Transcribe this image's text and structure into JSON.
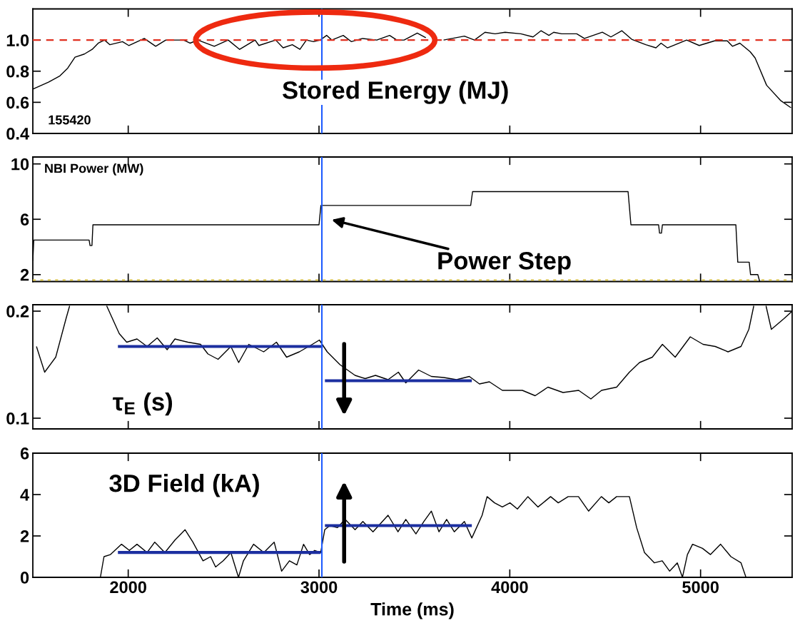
{
  "chart_data": [
    {
      "type": "line",
      "title": "Stored Energy (MJ)",
      "annotations": [
        "155420"
      ],
      "xlim": [
        1500,
        5480
      ],
      "xticks": [
        2000,
        3000,
        4000,
        5000
      ],
      "ylim": [
        0.4,
        1.2
      ],
      "yticks": [
        {
          "value": 0.4,
          "label": "0.4"
        },
        {
          "value": 0.6,
          "label": "0.6"
        },
        {
          "value": 0.8,
          "label": "0.8"
        },
        {
          "value": 1.0,
          "label": "1.0"
        }
      ],
      "tick_labels": "y",
      "ref_lines": [
        {
          "axis": "y",
          "value": 1.0,
          "color": "#e03020",
          "line_style": "dashed"
        },
        {
          "axis": "x",
          "value": 3015,
          "color": "#1f5cff",
          "line_style": "solid"
        }
      ],
      "series": [
        {
          "color": "#000000",
          "x": [
            1500,
            1582,
            1642,
            1683,
            1721,
            1770,
            1811,
            1843,
            1876,
            1904,
            1970,
            2003,
            2084,
            2144,
            2197,
            2290,
            2324,
            2365,
            2451,
            2524,
            2584,
            2665,
            2685,
            2773,
            2812,
            2860,
            2900,
            2934,
            2972,
            3006,
            3040,
            3067,
            3127,
            3169,
            3228,
            3303,
            3370,
            3408,
            3446,
            3515,
            3560,
            3600,
            3653,
            3762,
            3815,
            3870,
            3923,
            3975,
            4058,
            4122,
            4164,
            4205,
            4230,
            4272,
            4351,
            4391,
            4485,
            4530,
            4587,
            4639,
            4713,
            4766,
            4793,
            4826,
            4927,
            4993,
            5073,
            5140,
            5167,
            5206,
            5260,
            5286,
            5346,
            5421,
            5474
          ],
          "values": [
            0.685,
            0.73,
            0.77,
            0.82,
            0.89,
            0.91,
            0.94,
            0.98,
            1.0,
            0.97,
            0.99,
            0.965,
            1.01,
            0.96,
            1.0,
            1.0,
            0.98,
            1.0,
            0.96,
            1.0,
            0.94,
            1.0,
            0.965,
            1.0,
            0.95,
            0.97,
            0.94,
            1.0,
            0.99,
            1.0,
            1.03,
            1.0,
            1.03,
            0.99,
            1.01,
            1.0,
            1.03,
            1.0,
            1.0,
            1.045,
            1.015,
            null,
            1.0,
            1.025,
            1.0,
            1.05,
            1.04,
            1.05,
            1.04,
            1.02,
            1.06,
            1.03,
            1.05,
            1.04,
            1.04,
            1.01,
            1.05,
            1.02,
            1.06,
            1.005,
            0.97,
            0.95,
            0.98,
            0.95,
            1.0,
            0.965,
            0.995,
            0.995,
            0.96,
            0.98,
            0.925,
            0.885,
            0.71,
            0.61,
            0.565
          ]
        }
      ]
    },
    {
      "type": "line",
      "title": "NBI Power (MW)",
      "annotations": [
        "Power Step"
      ],
      "xlim": [
        1500,
        5480
      ],
      "xticks": [
        2000,
        3000,
        4000,
        5000
      ],
      "ylim": [
        1.5,
        10.5
      ],
      "yticks": [
        2,
        6,
        10
      ],
      "tick_labels": "y",
      "ref_lines": [
        {
          "axis": "y",
          "value": 1.6,
          "color": "#d8c040",
          "line_style": "dotted"
        },
        {
          "axis": "x",
          "value": 3015,
          "color": "#1f5cff",
          "line_style": "solid"
        }
      ],
      "series": [
        {
          "color": "#000000",
          "x": [
            1500,
            1505,
            1795,
            1800,
            1810,
            1815,
            3000,
            3010,
            3795,
            3805,
            4620,
            4635,
            4780,
            4785,
            4795,
            4800,
            5185,
            5195,
            5255,
            5262,
            5300,
            5310
          ],
          "values": [
            3.0,
            4.5,
            4.5,
            4.1,
            4.1,
            5.6,
            5.6,
            7.0,
            7.0,
            8.0,
            8.0,
            5.6,
            5.6,
            5.0,
            5.0,
            5.6,
            5.6,
            2.9,
            2.9,
            2.0,
            2.0,
            1.5
          ]
        }
      ]
    },
    {
      "type": "line",
      "title": "τ$_{E}$ (s)",
      "xlim": [
        1500,
        5480
      ],
      "xticks": [
        2000,
        3000,
        4000,
        5000
      ],
      "ylim": [
        0.09,
        0.206
      ],
      "yticks": [
        0.1,
        0.2
      ],
      "tick_labels": "y",
      "ref_lines": [
        {
          "axis": "x",
          "value": 3015,
          "color": "#1f5cff",
          "line_style": "solid"
        }
      ],
      "series": [
        {
          "color": "#000000",
          "x": [
            1519,
            1562,
            1620,
            1674,
            1693,
            1790,
            1887,
            1953,
            1992,
            2046,
            2099,
            2152,
            2204,
            2245,
            2313,
            2379,
            2418,
            2471,
            2538,
            2579,
            2632,
            2710,
            2777,
            2830,
            2897,
            2965,
            3002,
            3043,
            3110,
            3189,
            3242,
            3296,
            3362,
            3416,
            3455,
            3522,
            3589,
            3654,
            3721,
            3788,
            3841,
            3893,
            3961,
            4066,
            4133,
            4200,
            4279,
            4361,
            4425,
            4481,
            4560,
            4627,
            4680,
            4747,
            4800,
            4867,
            4946,
            5013,
            5077,
            5144,
            5212,
            5253,
            5279,
            5310,
            5343,
            5371,
            5437,
            5480
          ],
          "values": [
            0.167,
            0.143,
            0.157,
            0.193,
            0.205,
            null,
            0.205,
            0.179,
            0.171,
            0.174,
            0.167,
            0.175,
            0.164,
            0.174,
            0.171,
            0.169,
            0.16,
            0.155,
            0.167,
            0.152,
            0.169,
            0.162,
            0.171,
            0.157,
            0.162,
            0.169,
            0.173,
            0.162,
            0.15,
            0.14,
            0.137,
            0.14,
            0.136,
            0.143,
            0.133,
            0.145,
            0.139,
            0.138,
            0.136,
            0.139,
            0.132,
            0.134,
            0.126,
            0.126,
            0.121,
            0.129,
            0.124,
            0.126,
            0.118,
            0.126,
            0.129,
            0.143,
            0.152,
            0.157,
            0.169,
            0.157,
            0.176,
            0.169,
            0.167,
            0.162,
            0.167,
            0.183,
            0.205,
            null,
            0.205,
            0.183,
            0.193,
            0.2
          ]
        },
        {
          "color": "#1c2fa0",
          "x": [
            1946,
            3020
          ],
          "values": [
            0.167,
            0.167
          ]
        },
        {
          "color": "#1c2fa0",
          "x": [
            3031,
            3801
          ],
          "values": [
            0.135,
            0.135
          ]
        }
      ]
    },
    {
      "type": "line",
      "title": "3D Field (kA)",
      "xlabel": "Time (ms)",
      "xlim": [
        1500,
        5480
      ],
      "xticks": [
        2000,
        3000,
        4000,
        5000
      ],
      "ylim": [
        0,
        6
      ],
      "yticks": [
        0,
        2,
        4,
        6
      ],
      "ref_lines": [
        {
          "axis": "x",
          "value": 3015,
          "color": "#1f5cff",
          "line_style": "solid"
        }
      ],
      "series": [
        {
          "color": "#000000",
          "x": [
            1854,
            1873,
            1907,
            1965,
            2006,
            2046,
            2099,
            2139,
            2192,
            2245,
            2298,
            2339,
            2392,
            2432,
            2458,
            2498,
            2538,
            2578,
            2604,
            2657,
            2711,
            2765,
            2804,
            2845,
            2884,
            2919,
            2951,
            2977,
            3009,
            3030,
            3057,
            3096,
            3137,
            3189,
            3230,
            3283,
            3362,
            3414,
            3455,
            3508,
            3550,
            3589,
            3629,
            3669,
            3709,
            3762,
            3801,
            3855,
            3881,
            3920,
            3961,
            4001,
            4040,
            4095,
            4148,
            4214,
            4254,
            4306,
            4360,
            4413,
            4480,
            4519,
            4560,
            4627,
            4665,
            4706,
            4758,
            4799,
            4838,
            4878,
            4905,
            4931,
            4958,
            5010,
            5052,
            5105,
            5159,
            5212,
            5238
          ],
          "values": [
            0,
            1.0,
            1.1,
            1.6,
            1.3,
            1.6,
            1.2,
            1.7,
            1.2,
            1.8,
            2.3,
            1.7,
            0.8,
            1.0,
            0.5,
            0.8,
            1.2,
            0,
            0.8,
            1.6,
            1.2,
            1.7,
            0.3,
            0.8,
            0.6,
            1.6,
            1.1,
            1.3,
            1.2,
            2.3,
            2.5,
            2.4,
            2.8,
            2.3,
            2.7,
            2.2,
            3.0,
            2.2,
            2.8,
            2.1,
            2.7,
            3.2,
            2.2,
            2.8,
            2.2,
            2.7,
            1.9,
            3.0,
            3.9,
            3.6,
            3.4,
            3.6,
            3.3,
            3.9,
            3.4,
            3.9,
            3.6,
            3.9,
            3.9,
            3.2,
            3.9,
            3.6,
            3.9,
            3.9,
            2.4,
            1.2,
            0.7,
            0.8,
            0.3,
            0.7,
            0,
            1.1,
            1.6,
            1.4,
            1.1,
            1.6,
            1.0,
            0.7,
            0
          ]
        },
        {
          "color": "#1c2fa0",
          "x": [
            1946,
            3009
          ],
          "values": [
            1.2,
            1.2
          ]
        },
        {
          "color": "#1c2fa0",
          "x": [
            3031,
            3801
          ],
          "values": [
            2.5,
            2.5
          ]
        }
      ]
    }
  ]
}
